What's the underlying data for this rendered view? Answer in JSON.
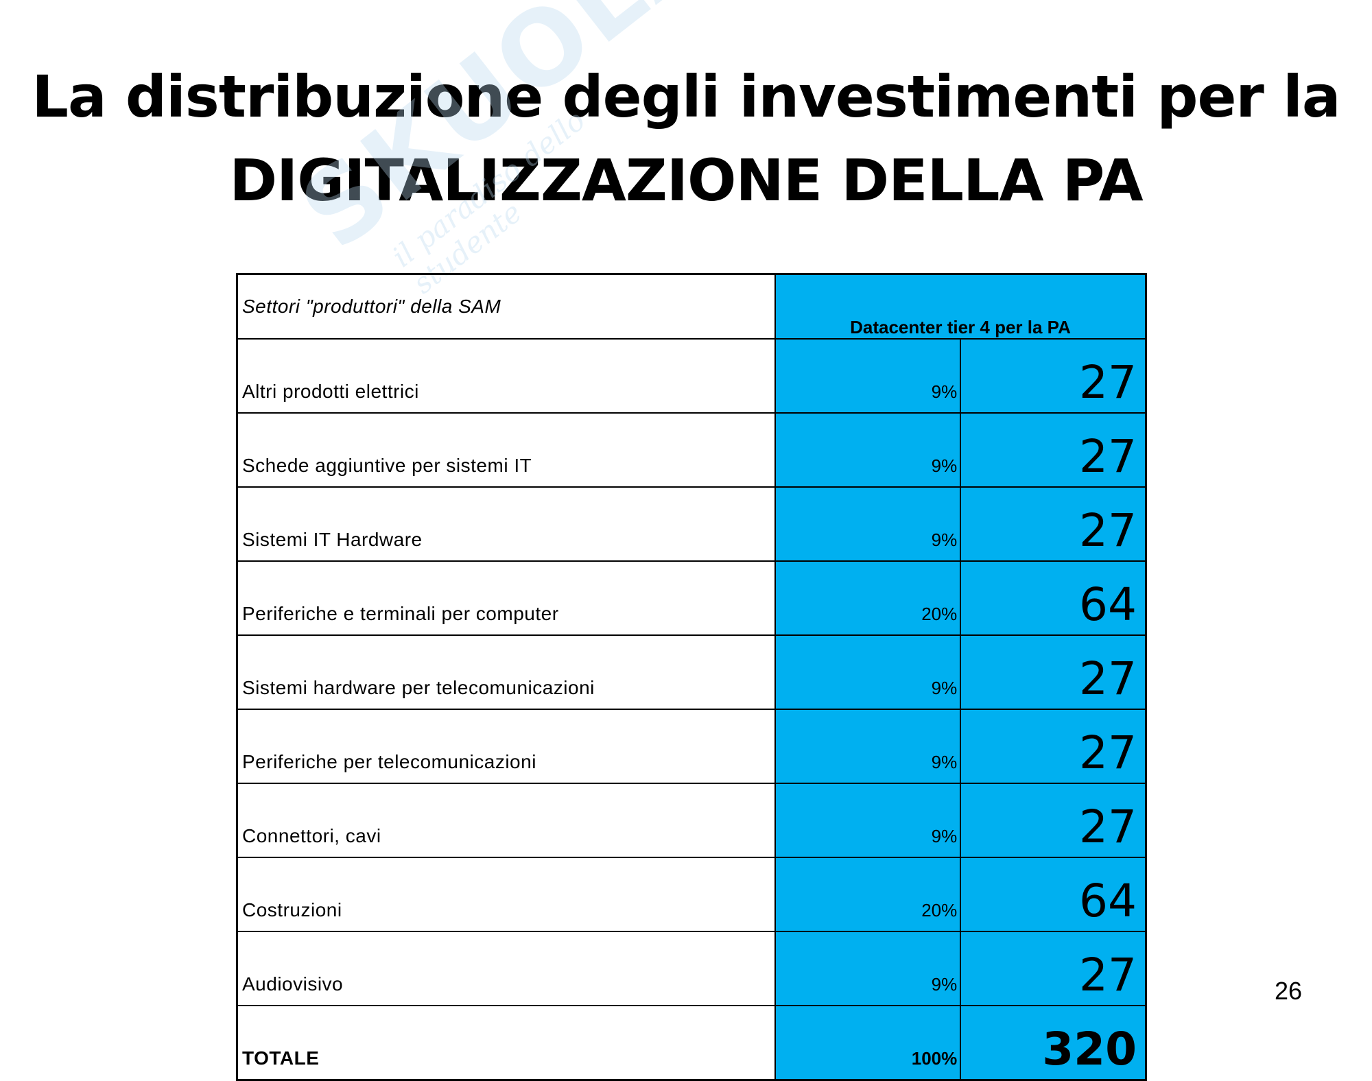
{
  "title": {
    "line1": "La distribuzione degli investimenti per la",
    "line2": "DIGITALIZZAZIONE DELLA PA"
  },
  "watermark": {
    "logo": "SKUOLA.net",
    "tagline": "il paradiso dello studente"
  },
  "table": {
    "header": {
      "sector_label": "Settori \"produttori\" della SAM",
      "column_label": "Datacenter tier 4 per la PA"
    },
    "rows": [
      {
        "sector": "Altri prodotti elettrici",
        "percent": "9%",
        "value": "27"
      },
      {
        "sector": "Schede aggiuntive per sistemi IT",
        "percent": "9%",
        "value": "27"
      },
      {
        "sector": "Sistemi IT Hardware",
        "percent": "9%",
        "value": "27"
      },
      {
        "sector": "Periferiche e terminali per computer",
        "percent": "20%",
        "value": "64"
      },
      {
        "sector": "Sistemi hardware per telecomunicazioni",
        "percent": "9%",
        "value": "27"
      },
      {
        "sector": "Periferiche per telecomunicazioni",
        "percent": "9%",
        "value": "27"
      },
      {
        "sector": "Connettori, cavi",
        "percent": "9%",
        "value": "27"
      },
      {
        "sector": "Costruzioni",
        "percent": "20%",
        "value": "64"
      },
      {
        "sector": "Audiovisivo",
        "percent": "9%",
        "value": "27"
      }
    ],
    "total": {
      "sector": "TOTALE",
      "percent": "100%",
      "value": "320"
    }
  },
  "page_number": "26",
  "colors": {
    "cell_blue": "#00b0f0"
  }
}
